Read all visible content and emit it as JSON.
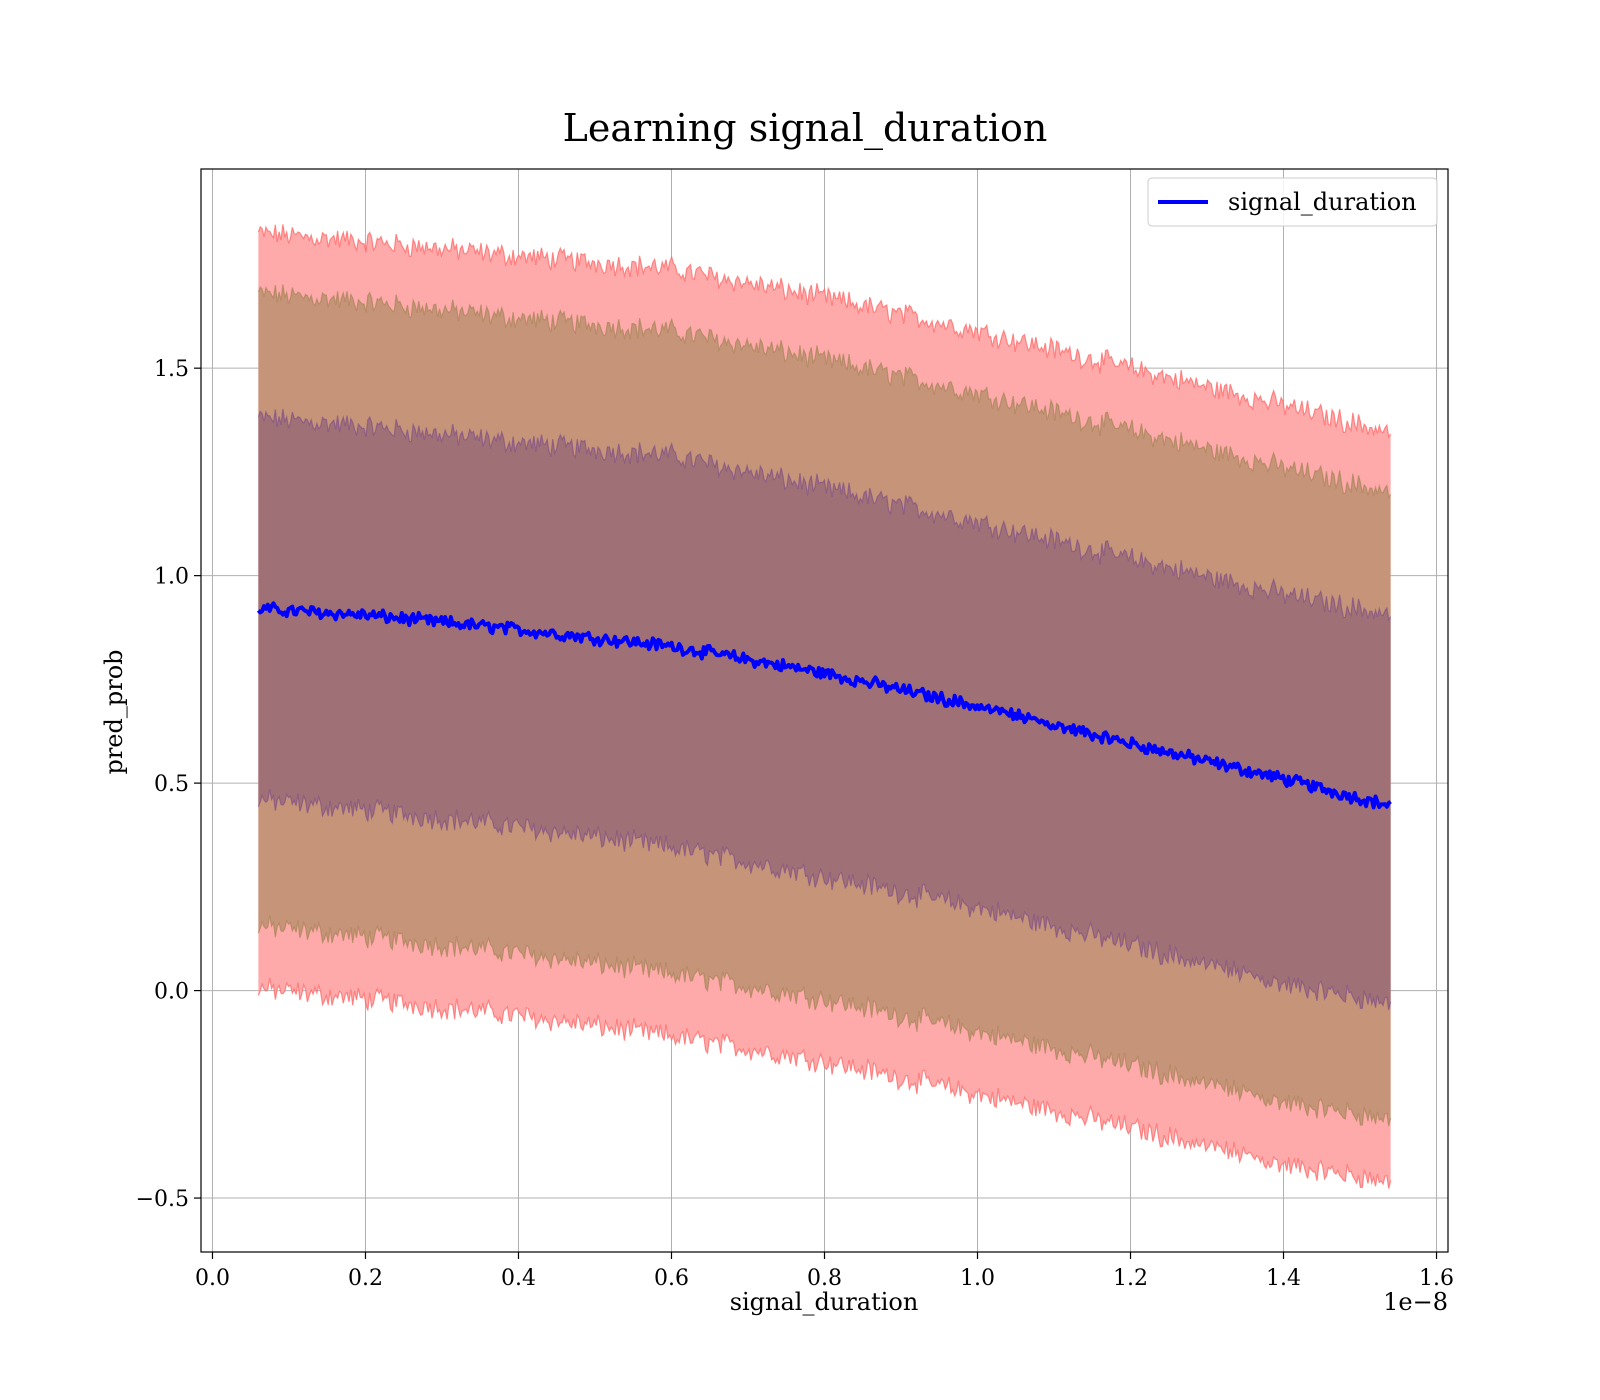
{
  "chart_data": {
    "type": "line",
    "title": "Learning signal_duration",
    "xlabel": "signal_duration",
    "ylabel": "pred_prob",
    "x_scale_label": "1e−8",
    "xlim": [
      -0.015,
      1.615
    ],
    "ylim": [
      -0.63,
      1.98
    ],
    "x_ticks": [
      0.0,
      0.2,
      0.4,
      0.6,
      0.8,
      1.0,
      1.2,
      1.4,
      1.6
    ],
    "x_tick_labels": [
      "0.0",
      "0.2",
      "0.4",
      "0.6",
      "0.8",
      "1.0",
      "1.2",
      "1.4",
      "1.6"
    ],
    "y_ticks": [
      -0.5,
      0.0,
      0.5,
      1.0,
      1.5
    ],
    "y_tick_labels": [
      "−0.5",
      "0.0",
      "0.5",
      "1.0",
      "1.5"
    ],
    "grid": true,
    "legend": {
      "position": "top-right",
      "entries": [
        "signal_duration"
      ]
    },
    "x": [
      0.06,
      0.2,
      0.4,
      0.6,
      0.8,
      1.0,
      1.2,
      1.4,
      1.54
    ],
    "series": [
      {
        "name": "signal_duration",
        "color": "#0000ff",
        "values": [
          0.92,
          0.905,
          0.87,
          0.83,
          0.765,
          0.685,
          0.595,
          0.51,
          0.445
        ]
      }
    ],
    "bands": [
      {
        "level": "3sd",
        "color": "#ff6666",
        "lower": [
          0.005,
          -0.02,
          -0.06,
          -0.11,
          -0.17,
          -0.25,
          -0.33,
          -0.42,
          -0.46
        ],
        "upper": [
          1.825,
          1.805,
          1.77,
          1.74,
          1.67,
          1.59,
          1.5,
          1.41,
          1.345
        ]
      },
      {
        "level": "2sd",
        "color": "#a08050",
        "lower": [
          0.155,
          0.13,
          0.09,
          0.04,
          -0.02,
          -0.1,
          -0.18,
          -0.27,
          -0.31
        ],
        "upper": [
          1.68,
          1.66,
          1.62,
          1.59,
          1.52,
          1.44,
          1.35,
          1.26,
          1.2
        ]
      },
      {
        "level": "1sd",
        "color": "#7a4a8a",
        "lower": [
          0.46,
          0.435,
          0.395,
          0.345,
          0.275,
          0.2,
          0.11,
          0.015,
          -0.03
        ],
        "upper": [
          1.38,
          1.36,
          1.32,
          1.29,
          1.21,
          1.13,
          1.04,
          0.955,
          0.905
        ]
      }
    ],
    "colors": {
      "band_outer": "#ffaaaa",
      "band_mid": "#c69478",
      "band_inner": "#a07077",
      "mean_line": "#0000ff"
    }
  }
}
